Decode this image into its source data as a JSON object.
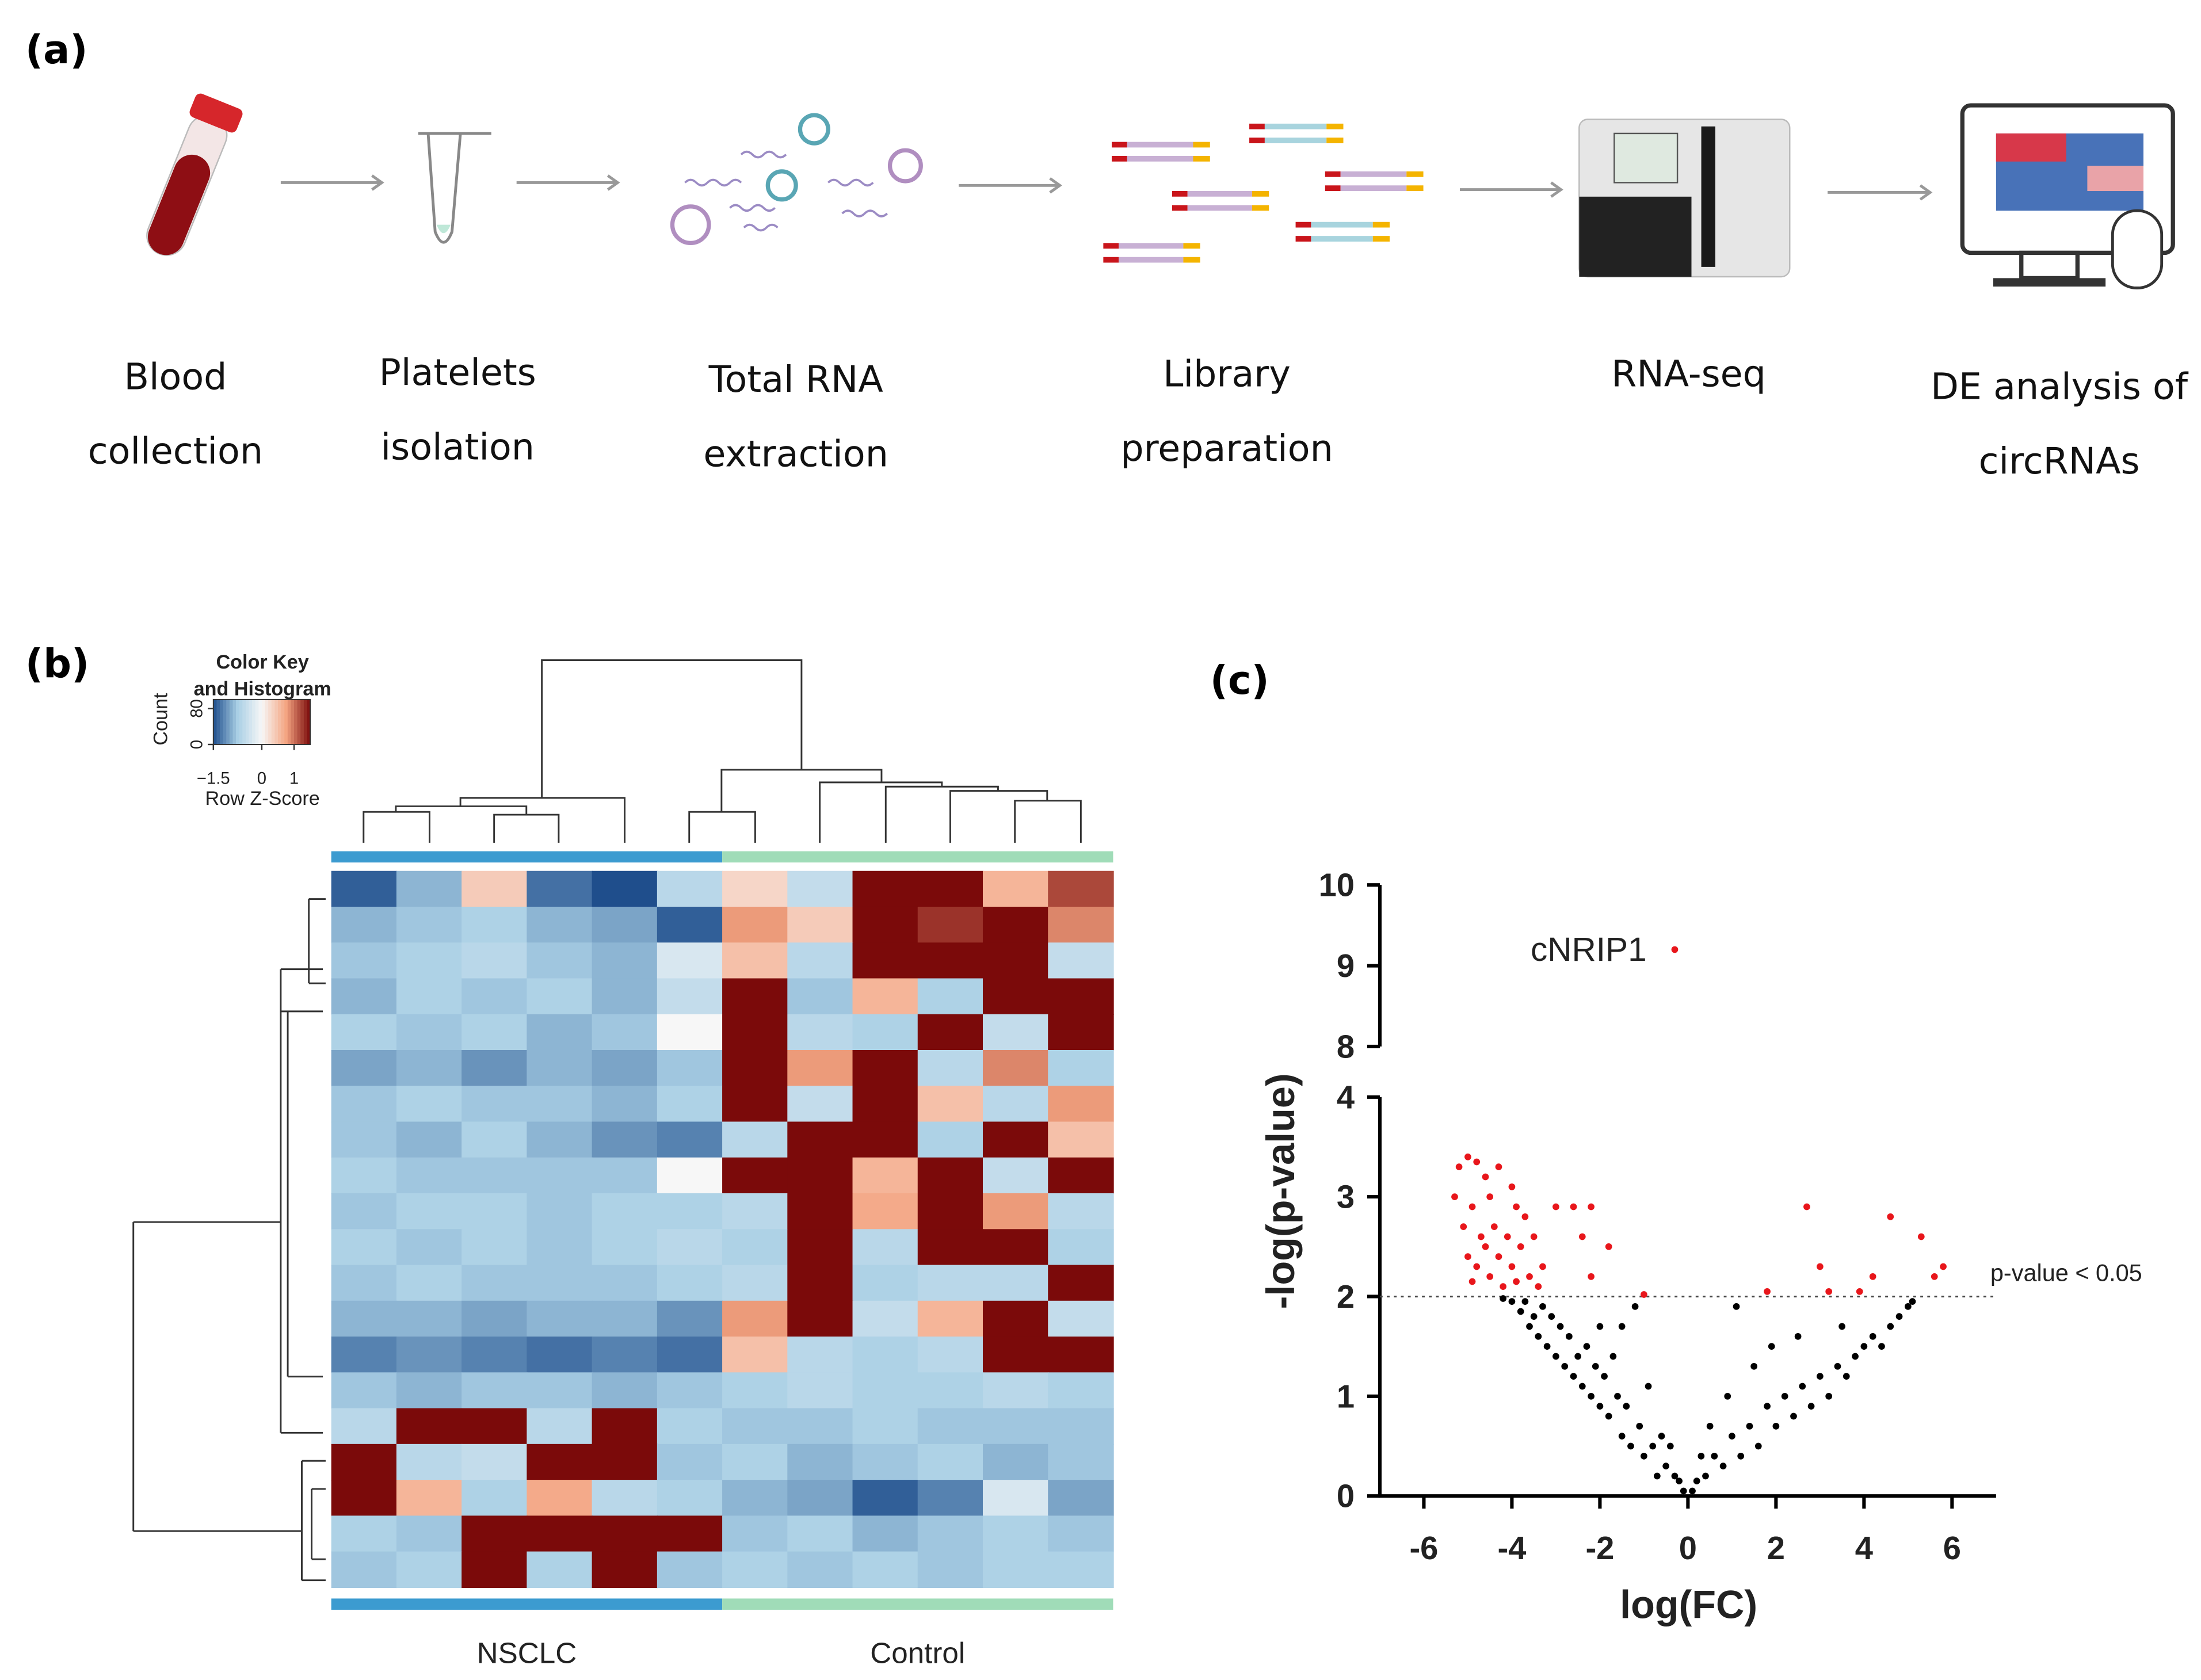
{
  "panel_a": {
    "label": "(a)",
    "steps": [
      [
        "Blood",
        "collection"
      ],
      [
        "Platelets",
        "isolation"
      ],
      [
        "Total RNA",
        "extraction"
      ],
      [
        "Library",
        "preparation"
      ],
      [
        "RNA-seq"
      ],
      [
        "DE analysis of",
        "circRNAs"
      ]
    ]
  },
  "panel_b": {
    "label": "(b)",
    "color_key": {
      "title": [
        "Color Key",
        "and Histogram"
      ],
      "x_label": "Row Z-Score",
      "y_label": "Count",
      "xlim": [
        -1.5,
        1.5
      ],
      "xticks": [
        {
          "value": -1.5,
          "label": "−1.5"
        },
        0,
        1
      ],
      "ylim": [
        0,
        100
      ],
      "yticks": [
        0,
        80
      ],
      "colors": [
        "#1f4e8c",
        "#a9cfe5",
        "#f7f7f7",
        "#f4a582",
        "#7b0a0a"
      ]
    },
    "groups": [
      {
        "name": "NSCLC",
        "color": "#3c9bd0"
      },
      {
        "name": "Control",
        "color": "#a0dcb8"
      }
    ],
    "matrix": [
      [
        -1.4,
        -0.9,
        0.4,
        -1.3,
        -1.5,
        -0.6,
        0.3,
        -0.5,
        1.5,
        1.5,
        0.6,
        1.2
      ],
      [
        -0.9,
        -0.8,
        -0.7,
        -0.9,
        -1.0,
        -1.4,
        0.8,
        0.4,
        1.5,
        1.3,
        1.5,
        0.9
      ],
      [
        -0.8,
        -0.7,
        -0.6,
        -0.8,
        -0.9,
        -0.3,
        0.5,
        -0.6,
        1.5,
        1.5,
        1.5,
        -0.5
      ],
      [
        -0.9,
        -0.7,
        -0.8,
        -0.7,
        -0.9,
        -0.5,
        1.5,
        -0.8,
        0.6,
        -0.7,
        1.5,
        1.5
      ],
      [
        -0.7,
        -0.8,
        -0.7,
        -0.9,
        -0.8,
        0.0,
        1.5,
        -0.6,
        -0.7,
        1.5,
        -0.5,
        1.5
      ],
      [
        -1.0,
        -0.9,
        -1.1,
        -0.9,
        -1.0,
        -0.8,
        1.5,
        0.8,
        1.5,
        -0.6,
        0.9,
        -0.7
      ],
      [
        -0.8,
        -0.7,
        -0.8,
        -0.8,
        -0.9,
        -0.7,
        1.5,
        -0.5,
        1.5,
        0.5,
        -0.6,
        0.8
      ],
      [
        -0.8,
        -0.9,
        -0.7,
        -0.9,
        -1.1,
        -1.2,
        -0.6,
        1.5,
        1.5,
        -0.7,
        1.5,
        0.5
      ],
      [
        -0.7,
        -0.8,
        -0.8,
        -0.8,
        -0.8,
        0.0,
        1.5,
        1.5,
        0.6,
        1.5,
        -0.5,
        1.5
      ],
      [
        -0.8,
        -0.7,
        -0.7,
        -0.8,
        -0.7,
        -0.7,
        -0.6,
        1.5,
        0.7,
        1.5,
        0.8,
        -0.6
      ],
      [
        -0.7,
        -0.8,
        -0.7,
        -0.8,
        -0.7,
        -0.6,
        -0.7,
        1.5,
        -0.6,
        1.5,
        1.5,
        -0.7
      ],
      [
        -0.8,
        -0.7,
        -0.8,
        -0.8,
        -0.8,
        -0.7,
        -0.6,
        1.5,
        -0.7,
        -0.6,
        -0.6,
        1.5
      ],
      [
        -0.9,
        -0.9,
        -1.0,
        -0.9,
        -0.9,
        -1.1,
        0.8,
        1.5,
        -0.5,
        0.6,
        1.5,
        -0.5
      ],
      [
        -1.2,
        -1.1,
        -1.2,
        -1.3,
        -1.2,
        -1.3,
        0.5,
        -0.6,
        -0.7,
        -0.6,
        1.5,
        1.5
      ],
      [
        -0.8,
        -0.9,
        -0.8,
        -0.8,
        -0.9,
        -0.8,
        -0.7,
        -0.6,
        -0.7,
        -0.7,
        -0.6,
        -0.7
      ],
      [
        -0.6,
        1.5,
        1.5,
        -0.6,
        1.5,
        -0.7,
        -0.8,
        -0.8,
        -0.7,
        -0.8,
        -0.8,
        -0.8
      ],
      [
        1.5,
        -0.6,
        -0.5,
        1.5,
        1.5,
        -0.8,
        -0.7,
        -0.9,
        -0.8,
        -0.7,
        -0.9,
        -0.8
      ],
      [
        1.5,
        0.6,
        -0.7,
        0.7,
        -0.6,
        -0.7,
        -0.9,
        -1.0,
        -1.4,
        -1.2,
        -0.3,
        -1.0
      ],
      [
        -0.7,
        -0.8,
        1.5,
        1.5,
        1.5,
        1.5,
        -0.8,
        -0.7,
        -0.9,
        -0.8,
        -0.7,
        -0.8
      ],
      [
        -0.8,
        -0.7,
        1.5,
        -0.7,
        1.5,
        -0.8,
        -0.7,
        -0.8,
        -0.7,
        -0.8,
        -0.7,
        -0.7
      ]
    ]
  },
  "chart_data": {
    "type": "scatter",
    "label": "(c)",
    "x_label": "log(FC)",
    "y_label": "-log(p-value)",
    "xlim": [
      -7,
      7
    ],
    "xticks": [
      -6,
      -4,
      -2,
      0,
      2,
      4,
      6
    ],
    "ylim": [
      0,
      10
    ],
    "ybreak": [
      4,
      8
    ],
    "yticks": [
      0,
      1,
      2,
      3,
      4,
      8,
      9,
      10
    ],
    "threshold": {
      "value": 2,
      "label": "p-value < 0.05"
    },
    "annotation": {
      "text": "cNRIP1"
    },
    "series": [
      {
        "color": "#000000",
        "x": [
          -0.1,
          -0.3,
          -0.5,
          -0.7,
          -0.8,
          -1.0,
          -1.1,
          -1.3,
          -1.4,
          -1.5,
          -1.6,
          -1.8,
          -1.9,
          -2.0,
          -2.1,
          -2.2,
          -2.3,
          -2.4,
          -2.5,
          -2.6,
          -2.7,
          -2.8,
          -2.9,
          -3.0,
          -3.1,
          -3.2,
          -3.3,
          -3.4,
          -3.5,
          -3.6,
          -3.7,
          -3.8,
          -4.0,
          -4.2,
          -1.2,
          -1.5,
          -0.6,
          -0.9,
          -1.7,
          -2.0,
          -0.4,
          -0.2,
          0.1,
          0.2,
          0.4,
          0.6,
          0.8,
          1.0,
          1.2,
          1.4,
          1.6,
          1.8,
          2.0,
          2.2,
          2.4,
          2.6,
          2.8,
          3.0,
          3.2,
          3.4,
          3.6,
          3.8,
          4.0,
          4.2,
          4.4,
          4.6,
          4.8,
          5.0,
          5.1,
          1.1,
          1.5,
          2.5,
          0.5,
          0.9,
          3.5,
          1.9,
          0.3
        ],
        "values": [
          0.05,
          0.2,
          0.3,
          0.2,
          0.5,
          0.4,
          0.7,
          0.5,
          0.9,
          0.6,
          1.0,
          0.8,
          1.2,
          0.9,
          1.3,
          1.0,
          1.5,
          1.1,
          1.4,
          1.2,
          1.6,
          1.3,
          1.7,
          1.4,
          1.8,
          1.5,
          1.9,
          1.6,
          1.8,
          1.7,
          1.95,
          1.85,
          1.95,
          1.98,
          1.9,
          1.7,
          0.6,
          1.1,
          1.4,
          1.7,
          0.5,
          0.15,
          0.05,
          0.15,
          0.2,
          0.4,
          0.3,
          0.6,
          0.4,
          0.7,
          0.5,
          0.9,
          0.7,
          1.0,
          0.8,
          1.1,
          0.9,
          1.2,
          1.0,
          1.3,
          1.2,
          1.4,
          1.5,
          1.6,
          1.5,
          1.7,
          1.8,
          1.9,
          1.95,
          1.9,
          1.3,
          1.6,
          0.7,
          1.0,
          1.7,
          1.5,
          0.4
        ]
      },
      {
        "color": "#e8161b",
        "x": [
          -5.0,
          -5.2,
          -4.8,
          -4.6,
          -4.3,
          -5.3,
          -4.9,
          -4.5,
          -4.0,
          -3.9,
          -5.1,
          -4.7,
          -4.4,
          -4.1,
          -3.7,
          -5.0,
          -4.8,
          -4.6,
          -4.3,
          -4.0,
          -3.8,
          -3.5,
          -3.3,
          -4.9,
          -4.5,
          -4.2,
          -3.9,
          -3.6,
          -3.4,
          -2.6,
          -2.2,
          -2.4,
          -3.0,
          -1.8,
          -2.2,
          -1.0,
          1.8,
          2.7,
          3.0,
          3.2,
          3.9,
          4.6,
          4.2,
          5.3,
          5.6,
          5.8,
          -0.3
        ],
        "values": [
          3.4,
          3.3,
          3.35,
          3.2,
          3.3,
          3.0,
          2.9,
          3.0,
          3.1,
          2.9,
          2.7,
          2.6,
          2.7,
          2.6,
          2.8,
          2.4,
          2.3,
          2.5,
          2.4,
          2.3,
          2.5,
          2.6,
          2.3,
          2.15,
          2.2,
          2.1,
          2.15,
          2.2,
          2.1,
          2.9,
          2.9,
          2.6,
          2.9,
          2.5,
          2.2,
          2.02,
          2.05,
          2.9,
          2.3,
          2.05,
          2.05,
          2.8,
          2.2,
          2.6,
          2.2,
          2.3,
          9.2
        ]
      }
    ]
  }
}
